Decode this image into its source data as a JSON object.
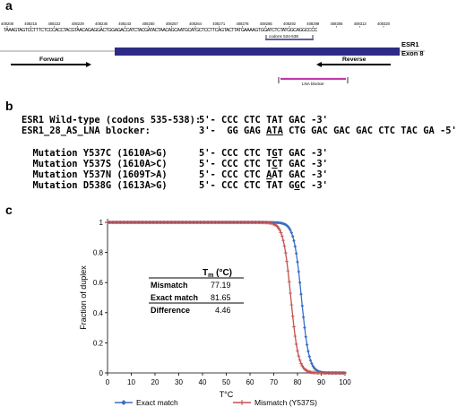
{
  "panel_a": {
    "label": "a",
    "coord_ticks": [
      "408208",
      "408215",
      "408222",
      "408229",
      "408236",
      "408243",
      "408250",
      "408257",
      "408264",
      "408271",
      "408278",
      "408285",
      "408292",
      "408299",
      "408306",
      "408313",
      "408320"
    ],
    "dna_sequence": "TAAAGTAGTCCTTTCTCCCACCTACGTAACAGAGGACTGGAGACCATCTACGATACTAACAGCAATGCATGCTCCTTCAGTACTTATGAAAAGTGGATCTCTATGGCAGGCCCC",
    "codon_box_label": "codons 534-538",
    "gene_label_line1": "ESR1",
    "gene_label_line2": "Exon 8",
    "forward_label": "Forward",
    "reverse_label": "Reverse",
    "lna_label": "LNA blocker"
  },
  "panel_b": {
    "label": "b",
    "rows": [
      {
        "name": "ESR1 Wild-type (codons 535-538):",
        "pre": "5'- CCC CTC TAT GAC -3'",
        "u": "",
        "post": ""
      },
      {
        "name": "ESR1_28_AS_LNA blocker:",
        "pre": "3'-  GG GAG ",
        "u": "ATA",
        "post": " CTG GAC GAC GAC CTC TAC GA -5'"
      },
      {
        "name": "",
        "pre": "",
        "u": "",
        "post": ""
      },
      {
        "name": "  Mutation Y537C (1610A>G)",
        "pre": "5'- CCC CTC T",
        "u": "G",
        "post": "T GAC -3'"
      },
      {
        "name": "  Mutation Y537S (1610A>C)",
        "pre": "5'- CCC CTC T",
        "u": "C",
        "post": "T GAC -3'"
      },
      {
        "name": "  Mutation Y537N (1609T>A)",
        "pre": "5'- CCC CTC ",
        "u": "A",
        "post": "AT GAC -3'"
      },
      {
        "name": "  Mutation D538G (1613A>G)",
        "pre": "5'- CCC CTC TAT G",
        "u": "G",
        "post": "C -3'"
      }
    ]
  },
  "panel_c": {
    "label": "c",
    "tm_table": {
      "header": "Tm (°C)",
      "rows": [
        {
          "label": "Mismatch",
          "value": "77.19"
        },
        {
          "label": "Exact match",
          "value": "81.65"
        },
        {
          "label": "Difference",
          "value": "4.46"
        }
      ]
    }
  },
  "chart_data": {
    "type": "line",
    "title": "",
    "xlabel": "T°C",
    "ylabel": "Fraction of duplex",
    "xlim": [
      0,
      100
    ],
    "ylim": [
      0,
      1
    ],
    "xticks": [
      0,
      10,
      20,
      30,
      40,
      50,
      60,
      70,
      80,
      90,
      100
    ],
    "yticks": [
      0,
      0.2,
      0.4,
      0.6,
      0.8,
      1
    ],
    "grid": false,
    "legend_position": "bottom",
    "series": [
      {
        "name": "Exact match",
        "color": "#3a6fc4",
        "marker": "diamond",
        "tm": 81.65,
        "width": 1.6
      },
      {
        "name": "Mismatch (Y537S)",
        "color": "#c0504d",
        "marker": "plus",
        "tm": 77.19,
        "width": 1.6
      }
    ],
    "x_start": 0,
    "x_end": 100,
    "x_step": 0.5
  }
}
